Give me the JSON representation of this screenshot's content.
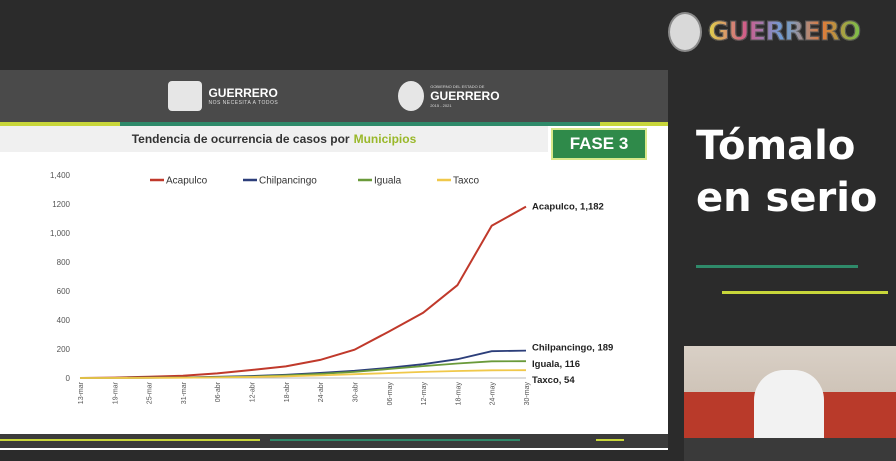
{
  "brand": {
    "word": "GUERRERO"
  },
  "slide": {
    "logo1": {
      "main": "GUERRERO",
      "sub": "NOS NECESITA A TODOS"
    },
    "logo2": {
      "sub": "GOBIERNO DEL ESTADO DE",
      "main": "GUERRERO",
      "year": "2015 - 2021"
    },
    "title_prefix": "Tendencia de ocurrencia de casos  por",
    "title_highlight": "Municipios",
    "badge": "FASE 3"
  },
  "side": {
    "line1": "Tómalo",
    "line2": "en serio"
  },
  "colors": {
    "acapulco": "#c0392b",
    "chilpancingo": "#2c3e7a",
    "iguala": "#6a9a3a",
    "taxco": "#f0c84a"
  },
  "chart_data": {
    "type": "line",
    "x": [
      "13-mar",
      "19-mar",
      "25-mar",
      "31-mar",
      "06-abr",
      "12-abr",
      "18-abr",
      "24-abr",
      "30-abr",
      "06-may",
      "12-may",
      "18-may",
      "24-may",
      "30-may"
    ],
    "ylim": [
      0,
      1400
    ],
    "yticks": [
      "0",
      "200",
      "400",
      "600",
      "800",
      "1,000",
      "1200",
      "1,400"
    ],
    "series": [
      {
        "name": "Acapulco",
        "values": [
          0,
          3,
          8,
          15,
          32,
          55,
          80,
          125,
          195,
          320,
          450,
          640,
          1050,
          1182
        ],
        "end_label": "Acapulco, 1,182"
      },
      {
        "name": "Chilpancingo",
        "values": [
          0,
          1,
          2,
          4,
          8,
          14,
          22,
          35,
          50,
          70,
          95,
          130,
          185,
          189
        ],
        "end_label": "Chilpancingo, 189"
      },
      {
        "name": "Iguala",
        "values": [
          0,
          1,
          2,
          3,
          6,
          10,
          18,
          28,
          42,
          62,
          82,
          100,
          115,
          116
        ],
        "end_label": "Iguala, 116"
      },
      {
        "name": "Taxco",
        "values": [
          0,
          0,
          1,
          2,
          4,
          7,
          12,
          18,
          26,
          34,
          42,
          48,
          53,
          54
        ],
        "end_label": "Taxco, 54"
      }
    ]
  }
}
